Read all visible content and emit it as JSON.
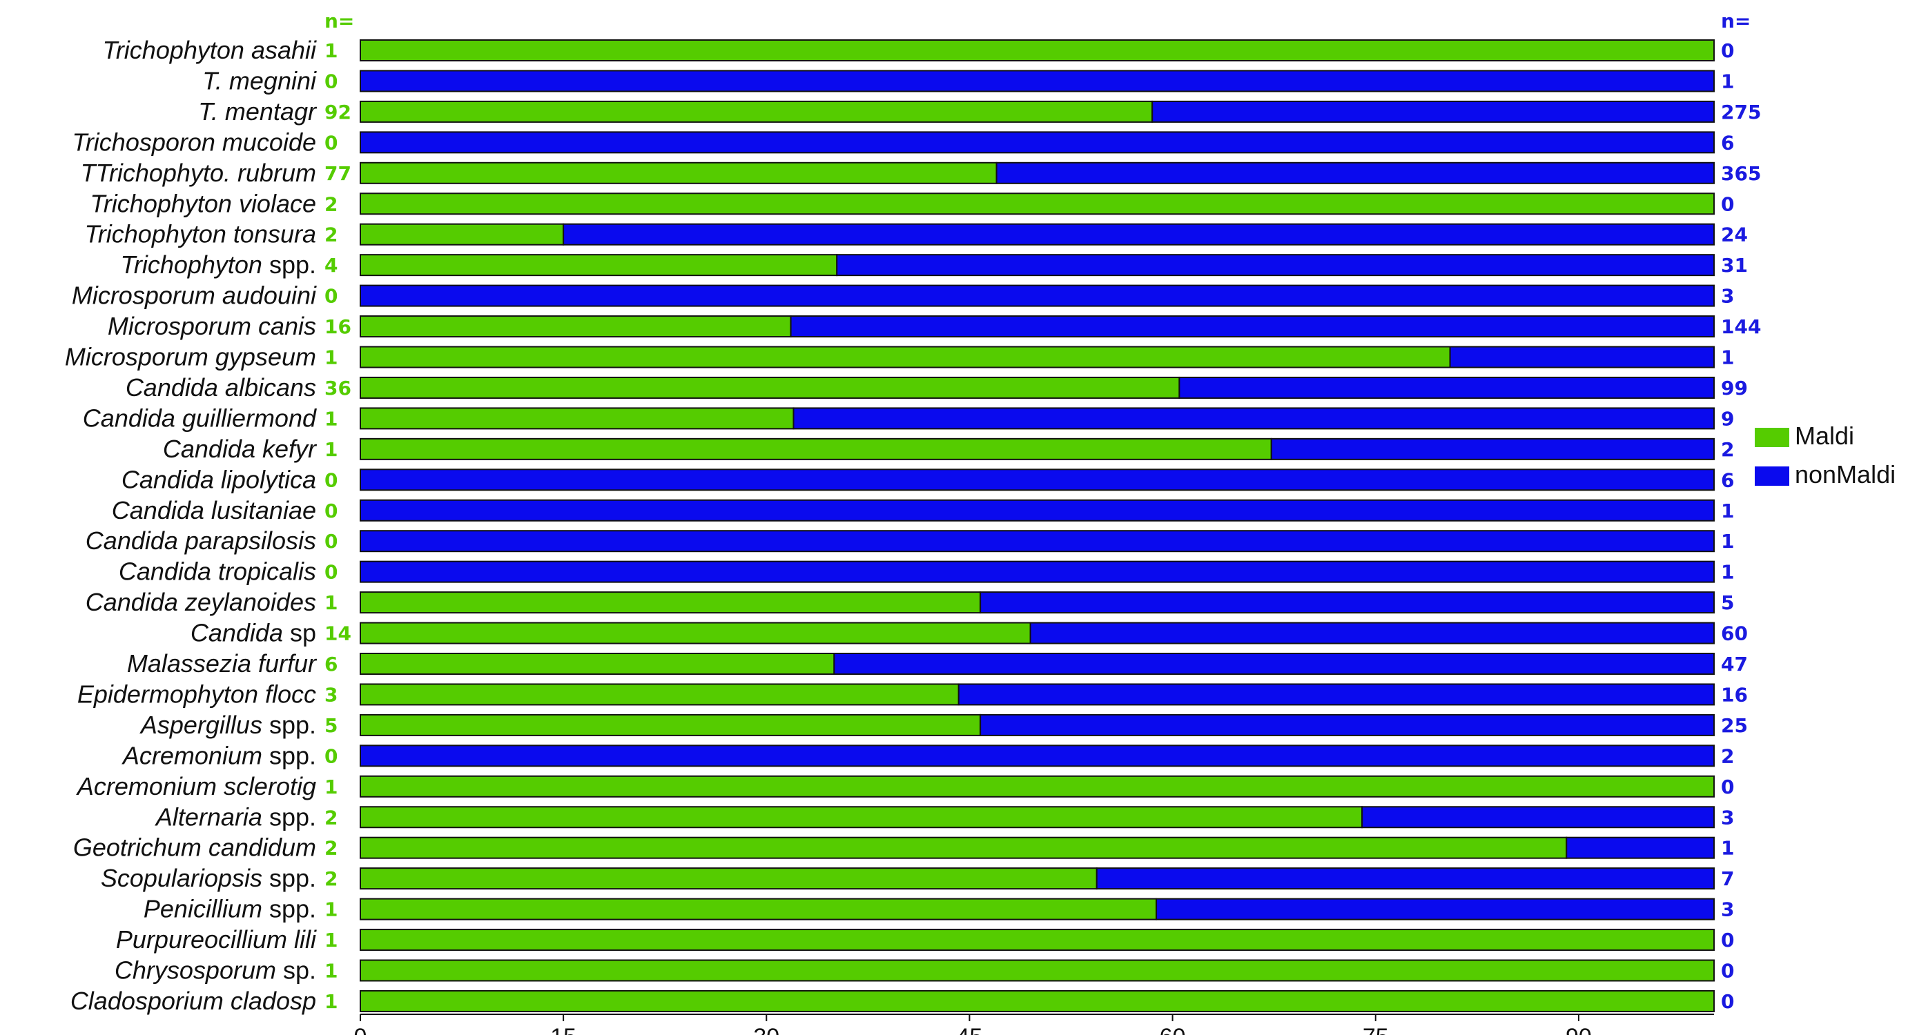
{
  "colors": {
    "maldi": "#55cc00",
    "nonmaldi": "#0a0aee",
    "maldi_text": "#55cc00",
    "nonmaldi_text": "#1a1ae0",
    "outline": "#111111"
  },
  "chart_data": {
    "type": "bar",
    "orientation": "horizontal",
    "stacked": true,
    "grid": false,
    "legend_position": "right",
    "xlim": [
      0,
      100
    ],
    "xticks": [
      0,
      15,
      30,
      45,
      60,
      75,
      90
    ],
    "left_header": "n=",
    "right_header": "n=",
    "categories": [
      {
        "italic": "Trichophyton asahii",
        "suffix": ""
      },
      {
        "italic": "T. megnini",
        "suffix": ""
      },
      {
        "italic": "T. mentagr",
        "suffix": ""
      },
      {
        "italic": "Trichosporon mucoide",
        "suffix": ""
      },
      {
        "italic": "TTrichophyto. rubrum",
        "suffix": ""
      },
      {
        "italic": "Trichophyton violace",
        "suffix": ""
      },
      {
        "italic": "Trichophyton tonsura",
        "suffix": ""
      },
      {
        "italic": "Trichophyton",
        "suffix": " spp."
      },
      {
        "italic": "Microsporum audouini",
        "suffix": ""
      },
      {
        "italic": "Microsporum canis",
        "suffix": ""
      },
      {
        "italic": "Microsporum gypseum",
        "suffix": ""
      },
      {
        "italic": "Candida albicans",
        "suffix": ""
      },
      {
        "italic": "Candida guilliermond",
        "suffix": ""
      },
      {
        "italic": "Candida kefyr",
        "suffix": ""
      },
      {
        "italic": "Candida lipolytica",
        "suffix": ""
      },
      {
        "italic": "Candida lusitaniae",
        "suffix": ""
      },
      {
        "italic": "Candida parapsilosis",
        "suffix": ""
      },
      {
        "italic": "Candida tropicalis",
        "suffix": ""
      },
      {
        "italic": "Candida zeylanoides",
        "suffix": ""
      },
      {
        "italic": "Candida",
        "suffix": " sp"
      },
      {
        "italic": "Malassezia furfur",
        "suffix": ""
      },
      {
        "italic": "Epidermophyton flocc",
        "suffix": ""
      },
      {
        "italic": "Aspergillus",
        "suffix": " spp."
      },
      {
        "italic": "Acremonium",
        "suffix": " spp."
      },
      {
        "italic": "Acremonium sclerotig",
        "suffix": ""
      },
      {
        "italic": "Alternaria",
        "suffix": " spp."
      },
      {
        "italic": "Geotrichum candidum",
        "suffix": ""
      },
      {
        "italic": "Scopulariopsis",
        "suffix": " spp."
      },
      {
        "italic": "Penicillium",
        "suffix": " spp."
      },
      {
        "italic": "Purpureocillium lili",
        "suffix": ""
      },
      {
        "italic": "Chrysosporum",
        "suffix": " sp."
      },
      {
        "italic": "Cladosporium cladosp",
        "suffix": ""
      }
    ],
    "series": [
      {
        "name": "Maldi",
        "n": [
          "1",
          "0",
          "92",
          "0",
          "77",
          "2",
          "2",
          "4",
          "0",
          "16",
          "1",
          "36",
          "1",
          "1",
          "0",
          "0",
          "0",
          "0",
          "1",
          "14",
          "6",
          "3",
          "5",
          "0",
          "1",
          "2",
          "2",
          "2",
          "1",
          "1",
          "1",
          "1"
        ],
        "values": [
          100,
          0,
          58.5,
          0,
          47,
          100,
          15,
          35.2,
          0,
          31.8,
          80.5,
          60.5,
          32,
          67.3,
          0,
          0,
          0,
          0,
          45.8,
          49.5,
          35,
          44.2,
          45.8,
          0,
          100,
          74,
          89.1,
          54.4,
          58.8,
          100,
          100,
          100
        ]
      },
      {
        "name": "nonMaldi",
        "n": [
          "0",
          "1",
          "275",
          "6",
          "365",
          "0",
          "24",
          "31",
          "3",
          "144",
          "1",
          "99",
          "9",
          "2",
          "6",
          "1",
          "1",
          "1",
          "5",
          "60",
          "47",
          "16",
          "25",
          "2",
          "0",
          "3",
          "1",
          "7",
          "3",
          "0",
          "0",
          "0"
        ],
        "values": [
          0,
          100,
          41.5,
          100,
          53,
          0,
          85,
          64.8,
          100,
          68.2,
          19.5,
          39.5,
          68,
          32.7,
          100,
          100,
          100,
          100,
          54.2,
          50.5,
          65,
          55.8,
          54.2,
          100,
          0,
          26,
          10.9,
          45.6,
          41.2,
          0,
          0,
          0
        ]
      }
    ]
  }
}
